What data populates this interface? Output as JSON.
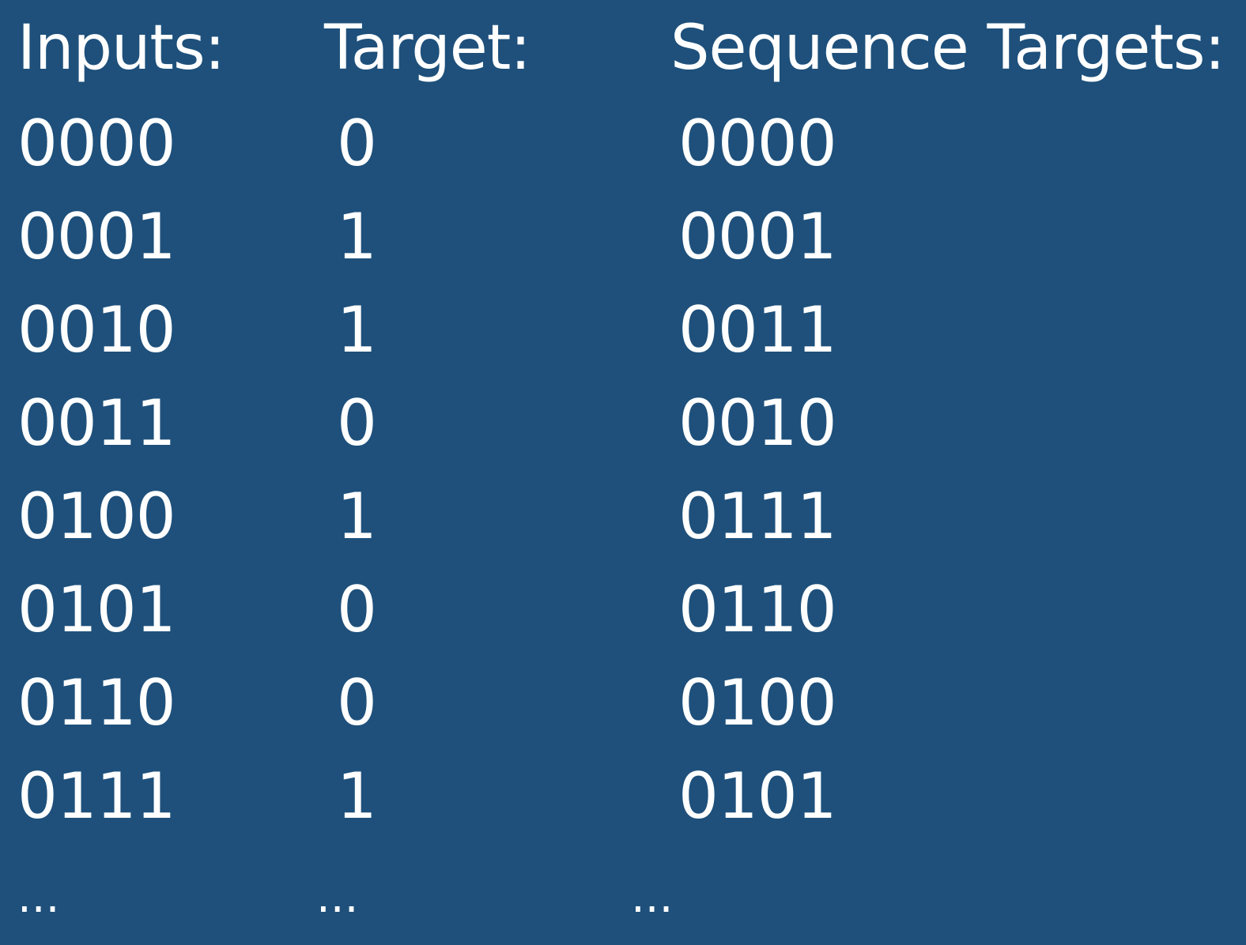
{
  "headers": {
    "inputs": "Inputs:",
    "target": "Target:",
    "sequence_targets": "Sequence Targets:"
  },
  "rows": [
    {
      "input": "0000",
      "target": "0",
      "sequence_target": "0000"
    },
    {
      "input": "0001",
      "target": "1",
      "sequence_target": "0001"
    },
    {
      "input": "0010",
      "target": "1",
      "sequence_target": "0011"
    },
    {
      "input": "0011",
      "target": "0",
      "sequence_target": "0010"
    },
    {
      "input": "0100",
      "target": "1",
      "sequence_target": "0111"
    },
    {
      "input": "0101",
      "target": "0",
      "sequence_target": "0110"
    },
    {
      "input": "0110",
      "target": "0",
      "sequence_target": "0100"
    },
    {
      "input": "0111",
      "target": "1",
      "sequence_target": "0101"
    }
  ],
  "continuation": {
    "inputs": "...",
    "target": "...",
    "sequence_targets": "..."
  }
}
